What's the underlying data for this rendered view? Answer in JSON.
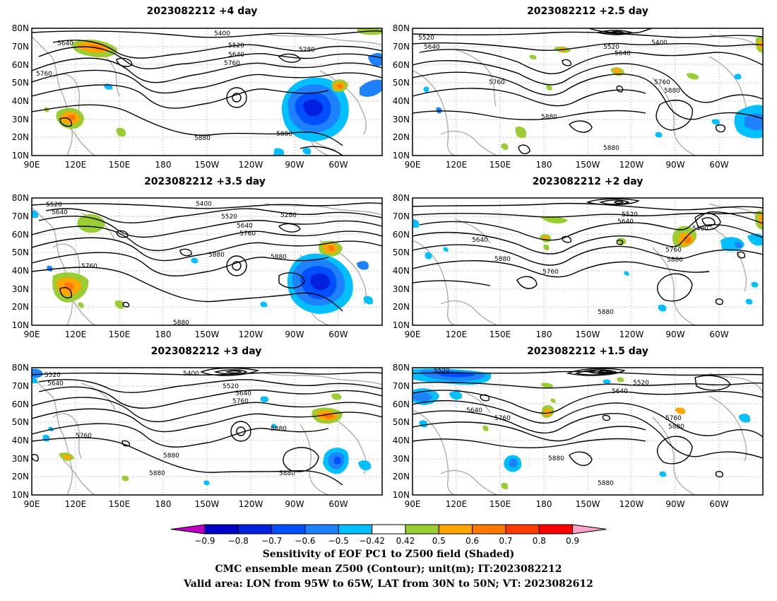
{
  "panels": [
    {
      "id": "p1",
      "title": "2023082212 +4 day",
      "labels": [
        "5400",
        "5280",
        "5520",
        "5640",
        "5760",
        "5880",
        "5880",
        "5640",
        "5760"
      ]
    },
    {
      "id": "p2",
      "title": "2023082212 +2.5 day",
      "labels": [
        "5520",
        "5640",
        "5520",
        "5640",
        "5400",
        "5760",
        "5760",
        "5880",
        "5880",
        "5880"
      ]
    },
    {
      "id": "p3",
      "title": "2023082212 +3.5 day",
      "labels": [
        "5520",
        "5640",
        "5400",
        "5520",
        "5280",
        "5640",
        "5760",
        "5880",
        "5880",
        "5760",
        "5880"
      ]
    },
    {
      "id": "p4",
      "title": "2023082212 +2 day",
      "labels": [
        "5520",
        "5640",
        "5400",
        "5640",
        "5880",
        "5760",
        "5760",
        "5880",
        "5880"
      ]
    },
    {
      "id": "p5",
      "title": "2023082212 +3 day",
      "labels": [
        "5520",
        "5640",
        "5400",
        "5520",
        "5640",
        "5760",
        "5880",
        "5760",
        "5880",
        "5880",
        "5880"
      ]
    },
    {
      "id": "p6",
      "title": "2023082212 +1.5 day",
      "labels": [
        "5520",
        "5520",
        "5640",
        "5640",
        "5760",
        "5760",
        "5880",
        "5880",
        "5880"
      ]
    }
  ],
  "axes": {
    "lat_ticks": [
      "80N",
      "70N",
      "60N",
      "50N",
      "40N",
      "30N",
      "20N",
      "10N"
    ],
    "lon_ticks": [
      "90E",
      "120E",
      "150E",
      "180",
      "150W",
      "120W",
      "90W",
      "60W"
    ]
  },
  "colorbar": {
    "levels": [
      "-0.9",
      "-0.8",
      "-0.7",
      "-0.6",
      "-0.5",
      "-0.42",
      "0.42",
      "0.5",
      "0.6",
      "0.7",
      "0.8",
      "0.9"
    ],
    "colors": [
      "#c000c0",
      "#0000c8",
      "#0022e0",
      "#0050ff",
      "#1e82ff",
      "#00c0ff",
      "#ffffff",
      "#9acd32",
      "#ffa500",
      "#ff7800",
      "#ff3c00",
      "#ff0000",
      "#ffa0c8"
    ]
  },
  "footer": {
    "line1": "Sensitivity of EOF PC1 to Z500 field (Shaded)",
    "line2": "CMC ensemble mean Z500 (Contour); unit(m); IT:2023082212",
    "line3": "Valid area: LON from 95W to 65W, LAT from 30N to 50N; VT: 2023082612"
  }
}
